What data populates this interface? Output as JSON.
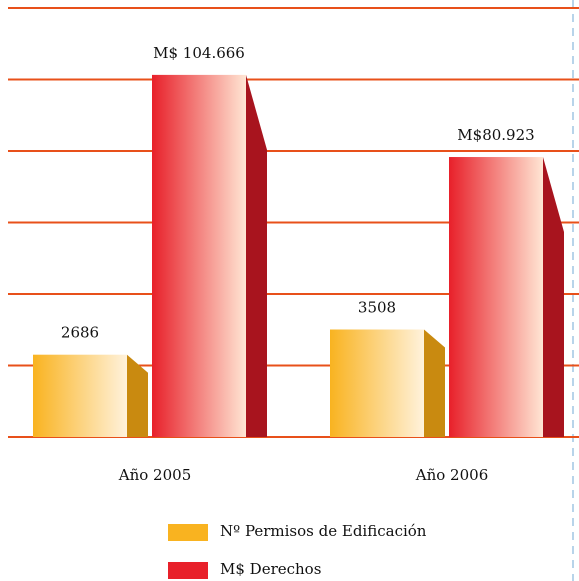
{
  "chart_data": {
    "type": "bar",
    "categories": [
      "Año 2005",
      "Año 2006"
    ],
    "series": [
      {
        "name": "Nº Permisos de Edificación",
        "color": "#f9b320",
        "values": [
          2686,
          3508
        ],
        "value_labels": [
          "2686",
          "3508"
        ]
      },
      {
        "name": "M$ Derechos",
        "color": "#e8202a",
        "values": [
          104.666,
          80.923
        ],
        "value_labels": [
          "M$ 104.666",
          "M$80.923"
        ],
        "axis": "y2"
      }
    ],
    "ylim": [
      0,
      14000
    ],
    "y2lim": [
      0,
      124
    ],
    "grid": true
  }
}
